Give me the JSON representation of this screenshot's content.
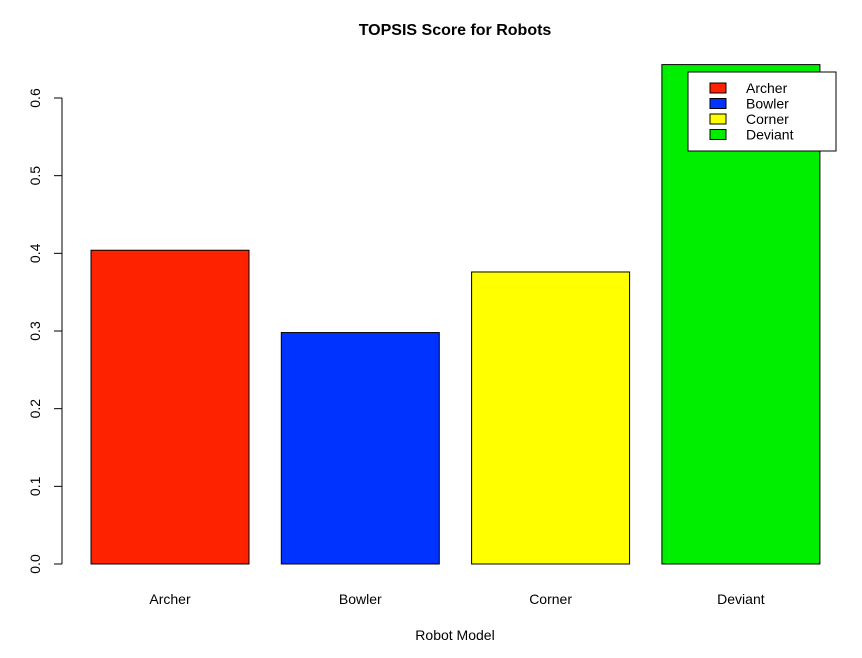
{
  "chart_data": {
    "type": "bar",
    "title": "TOPSIS Score for Robots",
    "xlabel": "Robot Model",
    "ylabel": "",
    "categories": [
      "Archer",
      "Bowler",
      "Corner",
      "Deviant"
    ],
    "values": [
      0.404,
      0.298,
      0.376,
      0.643
    ],
    "colors": [
      "#ff2200",
      "#0033ff",
      "#ffff00",
      "#00ee00"
    ],
    "ylim": [
      0,
      0.6
    ],
    "yticks": [
      "0.0",
      "0.1",
      "0.2",
      "0.3",
      "0.4",
      "0.5",
      "0.6"
    ],
    "grid": false,
    "legend": {
      "position": "top-right",
      "entries": [
        "Archer",
        "Bowler",
        "Corner",
        "Deviant"
      ]
    }
  }
}
